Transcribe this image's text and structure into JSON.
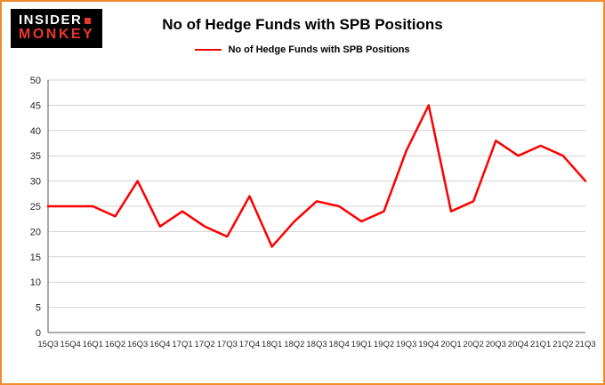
{
  "brand": {
    "line1": "INSIDER",
    "line2": "MONKEY"
  },
  "title": "No of Hedge Funds with SPB Positions",
  "legend": {
    "label": "No of Hedge Funds with SPB Positions",
    "color": "#fe0000"
  },
  "colors": {
    "frame_border": "#f08c2e",
    "grid": "#d3d3d3",
    "axis": "#595959",
    "tick_text": "#262626",
    "series_line": "#fe0000",
    "logo_bg": "#000000",
    "logo_accent": "#e8392e"
  },
  "chart_data": {
    "type": "line",
    "title": "No of Hedge Funds with SPB Positions",
    "xlabel": "",
    "ylabel": "",
    "ylim": [
      0,
      50
    ],
    "ytick_step": 5,
    "grid": true,
    "legend_position": "top-center",
    "categories": [
      "15Q3",
      "15Q4",
      "16Q1",
      "16Q2",
      "16Q3",
      "16Q4",
      "17Q1",
      "17Q2",
      "17Q3",
      "17Q4",
      "18Q1",
      "18Q2",
      "18Q3",
      "18Q4",
      "19Q1",
      "19Q2",
      "19Q3",
      "19Q4",
      "20Q1",
      "20Q2",
      "20Q3",
      "20Q4",
      "21Q1",
      "21Q2",
      "21Q3"
    ],
    "series": [
      {
        "name": "No of Hedge Funds with SPB Positions",
        "color": "#fe0000",
        "values": [
          25,
          25,
          25,
          23,
          30,
          21,
          24,
          21,
          19,
          27,
          17,
          22,
          26,
          25,
          22,
          24,
          36,
          45,
          24,
          26,
          38,
          35,
          37,
          35,
          30
        ]
      }
    ]
  }
}
